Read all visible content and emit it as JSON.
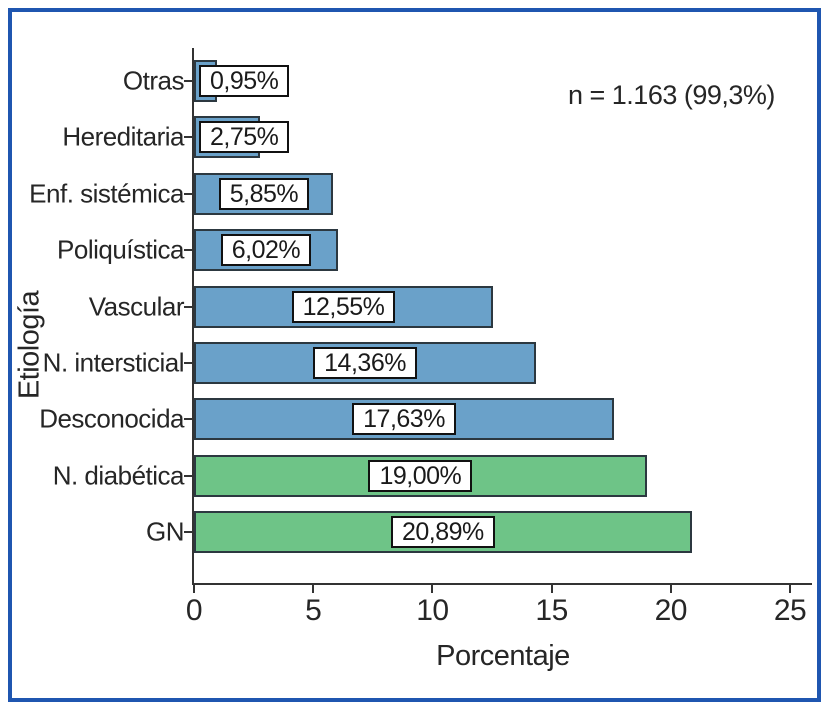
{
  "chart_data": {
    "type": "bar",
    "orientation": "horizontal",
    "title": "",
    "xlabel": "Porcentaje",
    "ylabel": "Etiología",
    "annotation": "n = 1.163 (99,3%)",
    "categories": [
      "Otras",
      "Hereditaria",
      "Enf. sistémica",
      "Poliquística",
      "Vascular",
      "N. intersticial",
      "Desconocida",
      "N. diabética",
      "GN"
    ],
    "values": [
      0.95,
      2.75,
      5.85,
      6.02,
      12.55,
      14.36,
      17.63,
      19.0,
      20.89
    ],
    "value_labels": [
      "0,95%",
      "2,75%",
      "5,85%",
      "6,02%",
      "12,55%",
      "14,36%",
      "17,63%",
      "19,00%",
      "20,89%"
    ],
    "bar_colors": [
      "#6aa1c9",
      "#6aa1c9",
      "#6aa1c9",
      "#6aa1c9",
      "#6aa1c9",
      "#6aa1c9",
      "#6aa1c9",
      "#6ec487",
      "#6ec487"
    ],
    "x_tick_labels": [
      "0",
      "5",
      "10",
      "15",
      "20",
      "25"
    ],
    "x_tick_values": [
      0,
      5,
      10,
      15,
      20,
      25
    ],
    "xlim": [
      0,
      26
    ],
    "grid": false,
    "legend": false
  },
  "colors": {
    "frame_border": "#1f56b0",
    "axis": "#333333",
    "text": "#262626",
    "bar_border": "#2c3840",
    "blue_bar": "#6aa1c9",
    "green_bar": "#6ec487",
    "value_box_bg": "#ffffff",
    "value_box_border": "#111111"
  }
}
